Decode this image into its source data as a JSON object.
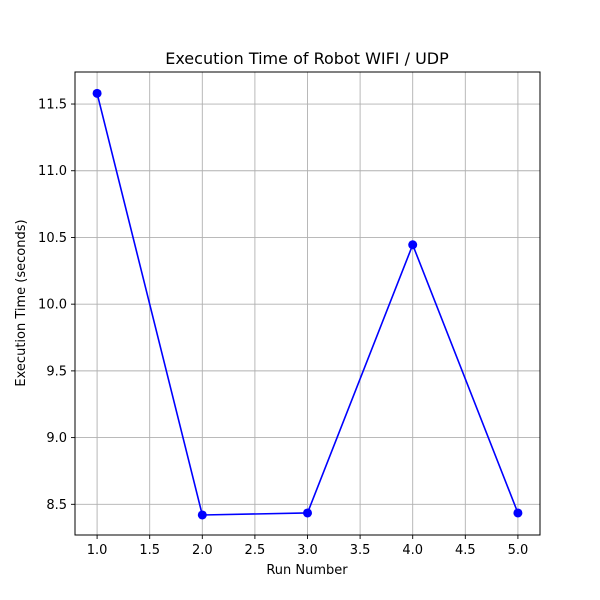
{
  "chart_data": {
    "type": "line",
    "title": "Execution Time of Robot WIFI / UDP",
    "xlabel": "Run Number",
    "ylabel": "Execution Time (seconds)",
    "xlim": [
      0.79,
      5.21
    ],
    "ylim": [
      8.27,
      11.74
    ],
    "xticks": [
      1.0,
      1.5,
      2.0,
      2.5,
      3.0,
      3.5,
      4.0,
      4.5,
      5.0
    ],
    "xtick_labels": [
      "1.0",
      "1.5",
      "2.0",
      "2.5",
      "3.0",
      "3.5",
      "4.0",
      "4.5",
      "5.0"
    ],
    "yticks": [
      8.5,
      9.0,
      9.5,
      10.0,
      10.5,
      11.0,
      11.5
    ],
    "ytick_labels": [
      "8.5",
      "9.0",
      "9.5",
      "10.0",
      "10.5",
      "11.0",
      "11.5"
    ],
    "grid": true,
    "series": [
      {
        "x": [
          1,
          2,
          3,
          4,
          5
        ],
        "y": [
          11.58,
          8.42,
          8.435,
          10.445,
          8.435
        ],
        "color": "#0000ff",
        "marker": "circle"
      }
    ]
  }
}
